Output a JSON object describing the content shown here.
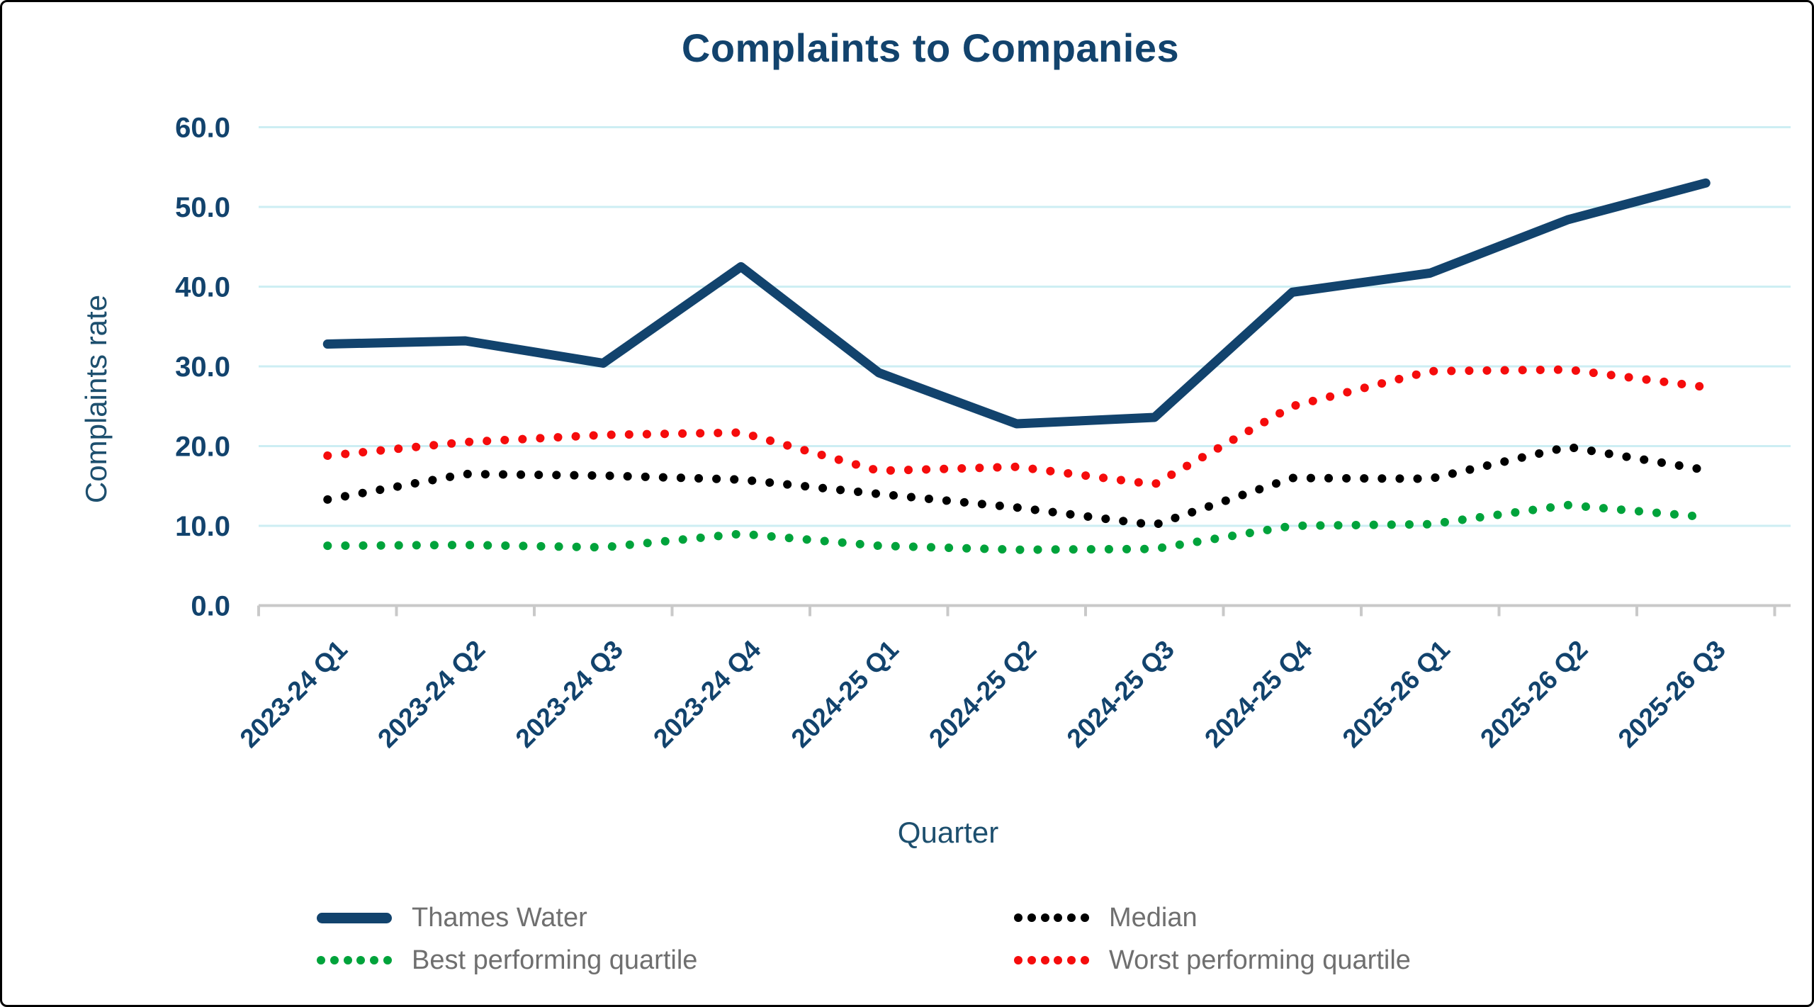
{
  "chart_data": {
    "type": "line",
    "title": "Complaints to Companies",
    "xlabel": "Quarter",
    "ylabel": "Complaints rate",
    "ylim": [
      0,
      60
    ],
    "y_tick_step": 10,
    "grid": "horizontal pale-cyan lines, legend at bottom in 2 columns",
    "legend_position": "bottom",
    "categories": [
      "2023-24 Q1",
      "2023-24 Q2",
      "2023-24 Q3",
      "2023-24 Q4",
      "2024-25 Q1",
      "2024-25 Q2",
      "2024-25 Q3",
      "2024-25 Q4",
      "2025-26 Q1",
      "2025-26 Q2",
      "2025-26 Q3"
    ],
    "series": [
      {
        "name": "Thames Water",
        "style": "solid",
        "color": "#12436d",
        "values": [
          32.8,
          33.2,
          30.4,
          42.5,
          29.2,
          22.8,
          23.6,
          39.3,
          41.7,
          48.4,
          53.0
        ]
      },
      {
        "name": "Median",
        "style": "dotted",
        "color": "#000000",
        "values": [
          13.3,
          16.5,
          16.3,
          15.8,
          14.0,
          12.3,
          10.1,
          16.0,
          15.9,
          19.9,
          17.0
        ]
      },
      {
        "name": "Best performing quartile",
        "style": "dotted",
        "color": "#00a33b",
        "values": [
          7.5,
          7.6,
          7.3,
          9.0,
          7.5,
          7.0,
          7.1,
          10.0,
          10.2,
          12.6,
          11.1
        ]
      },
      {
        "name": "Worst performing quartile",
        "style": "dotted",
        "color": "#f50c0c",
        "values": [
          18.8,
          20.5,
          21.4,
          21.7,
          16.9,
          17.4,
          15.2,
          25.0,
          29.4,
          29.6,
          27.4
        ]
      }
    ]
  },
  "axes": {
    "y_title": "Complaints rate",
    "x_title": "Quarter",
    "y_ticks": [
      "60.0",
      "50.0",
      "40.0",
      "30.0",
      "20.0",
      "10.0",
      "0.0"
    ]
  },
  "colors": {
    "title_text": "#12436d",
    "axis_label_text": "#12436d",
    "gridline": "#cdeef3",
    "axis_line": "#c9c9c9",
    "legend_text": "#6f6f6f"
  }
}
